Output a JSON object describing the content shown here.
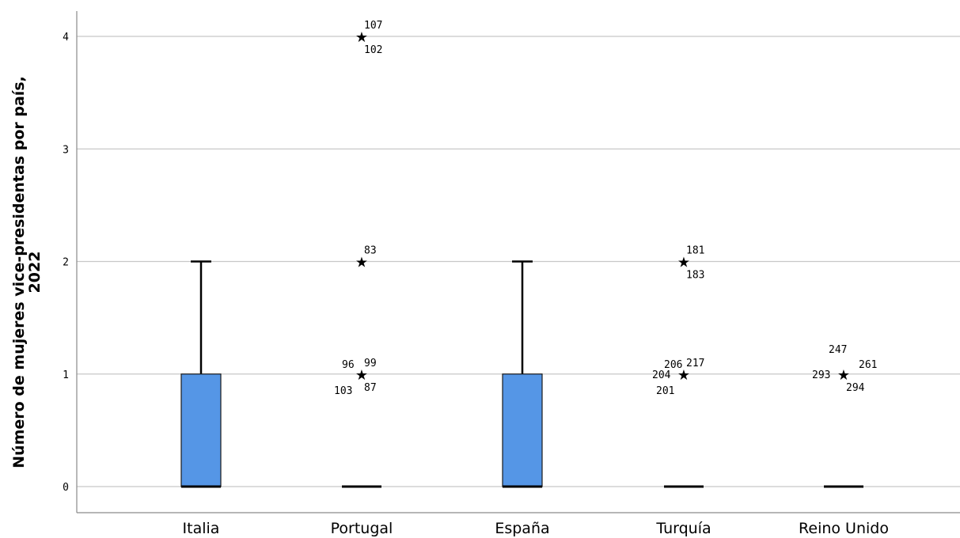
{
  "chart_data": {
    "type": "boxplot",
    "ylabel_line1": "Número de mujeres  vice-presidentas por país,",
    "ylabel_line2": "2022",
    "ylim": [
      -0.2,
      4.2
    ],
    "yticks": [
      0,
      1,
      2,
      3,
      4
    ],
    "grid": true,
    "box_color": "#5596e6",
    "categories": [
      "Italia",
      "Portugal",
      "España",
      "Turquía",
      "Reino Unido"
    ],
    "boxes": [
      {
        "category": "Italia",
        "q1": 0,
        "median": 0,
        "q3": 1,
        "whisker_low": 0,
        "whisker_high": 2
      },
      {
        "category": "Portugal",
        "q1": 0,
        "median": 0,
        "q3": 0,
        "whisker_low": 0,
        "whisker_high": 0
      },
      {
        "category": "España",
        "q1": 0,
        "median": 0,
        "q3": 1,
        "whisker_low": 0,
        "whisker_high": 2
      },
      {
        "category": "Turquía",
        "q1": 0,
        "median": 0,
        "q3": 0,
        "whisker_low": 0,
        "whisker_high": 0
      },
      {
        "category": "Reino Unido",
        "q1": 0,
        "median": 0,
        "q3": 0,
        "whisker_low": 0,
        "whisker_high": 0
      }
    ],
    "outliers": [
      {
        "category": "Portugal",
        "value": 4,
        "labels": [
          {
            "text": "107",
            "pos": "above-right"
          },
          {
            "text": "102",
            "pos": "below-right"
          }
        ]
      },
      {
        "category": "Portugal",
        "value": 2,
        "labels": [
          {
            "text": "83",
            "pos": "above-right"
          }
        ]
      },
      {
        "category": "Portugal",
        "value": 1,
        "labels": [
          {
            "text": "96",
            "pos": "above-left"
          },
          {
            "text": "99",
            "pos": "above-right"
          },
          {
            "text": "103",
            "pos": "below-left"
          },
          {
            "text": "87",
            "pos": "below-right"
          }
        ]
      },
      {
        "category": "Turquía",
        "value": 2,
        "labels": [
          {
            "text": "181",
            "pos": "above-right"
          },
          {
            "text": "183",
            "pos": "below-right"
          }
        ]
      },
      {
        "category": "Turquía",
        "value": 1,
        "labels": [
          {
            "text": "206",
            "pos": "above-left"
          },
          {
            "text": "217",
            "pos": "above-right"
          },
          {
            "text": "204",
            "pos": "left"
          },
          {
            "text": "201",
            "pos": "below-left"
          }
        ]
      },
      {
        "category": "Reino Unido",
        "value": 1,
        "labels": [
          {
            "text": "247",
            "pos": "above2-right"
          },
          {
            "text": "293",
            "pos": "left"
          },
          {
            "text": "261",
            "pos": "right"
          },
          {
            "text": "294",
            "pos": "below-right"
          }
        ]
      }
    ]
  }
}
